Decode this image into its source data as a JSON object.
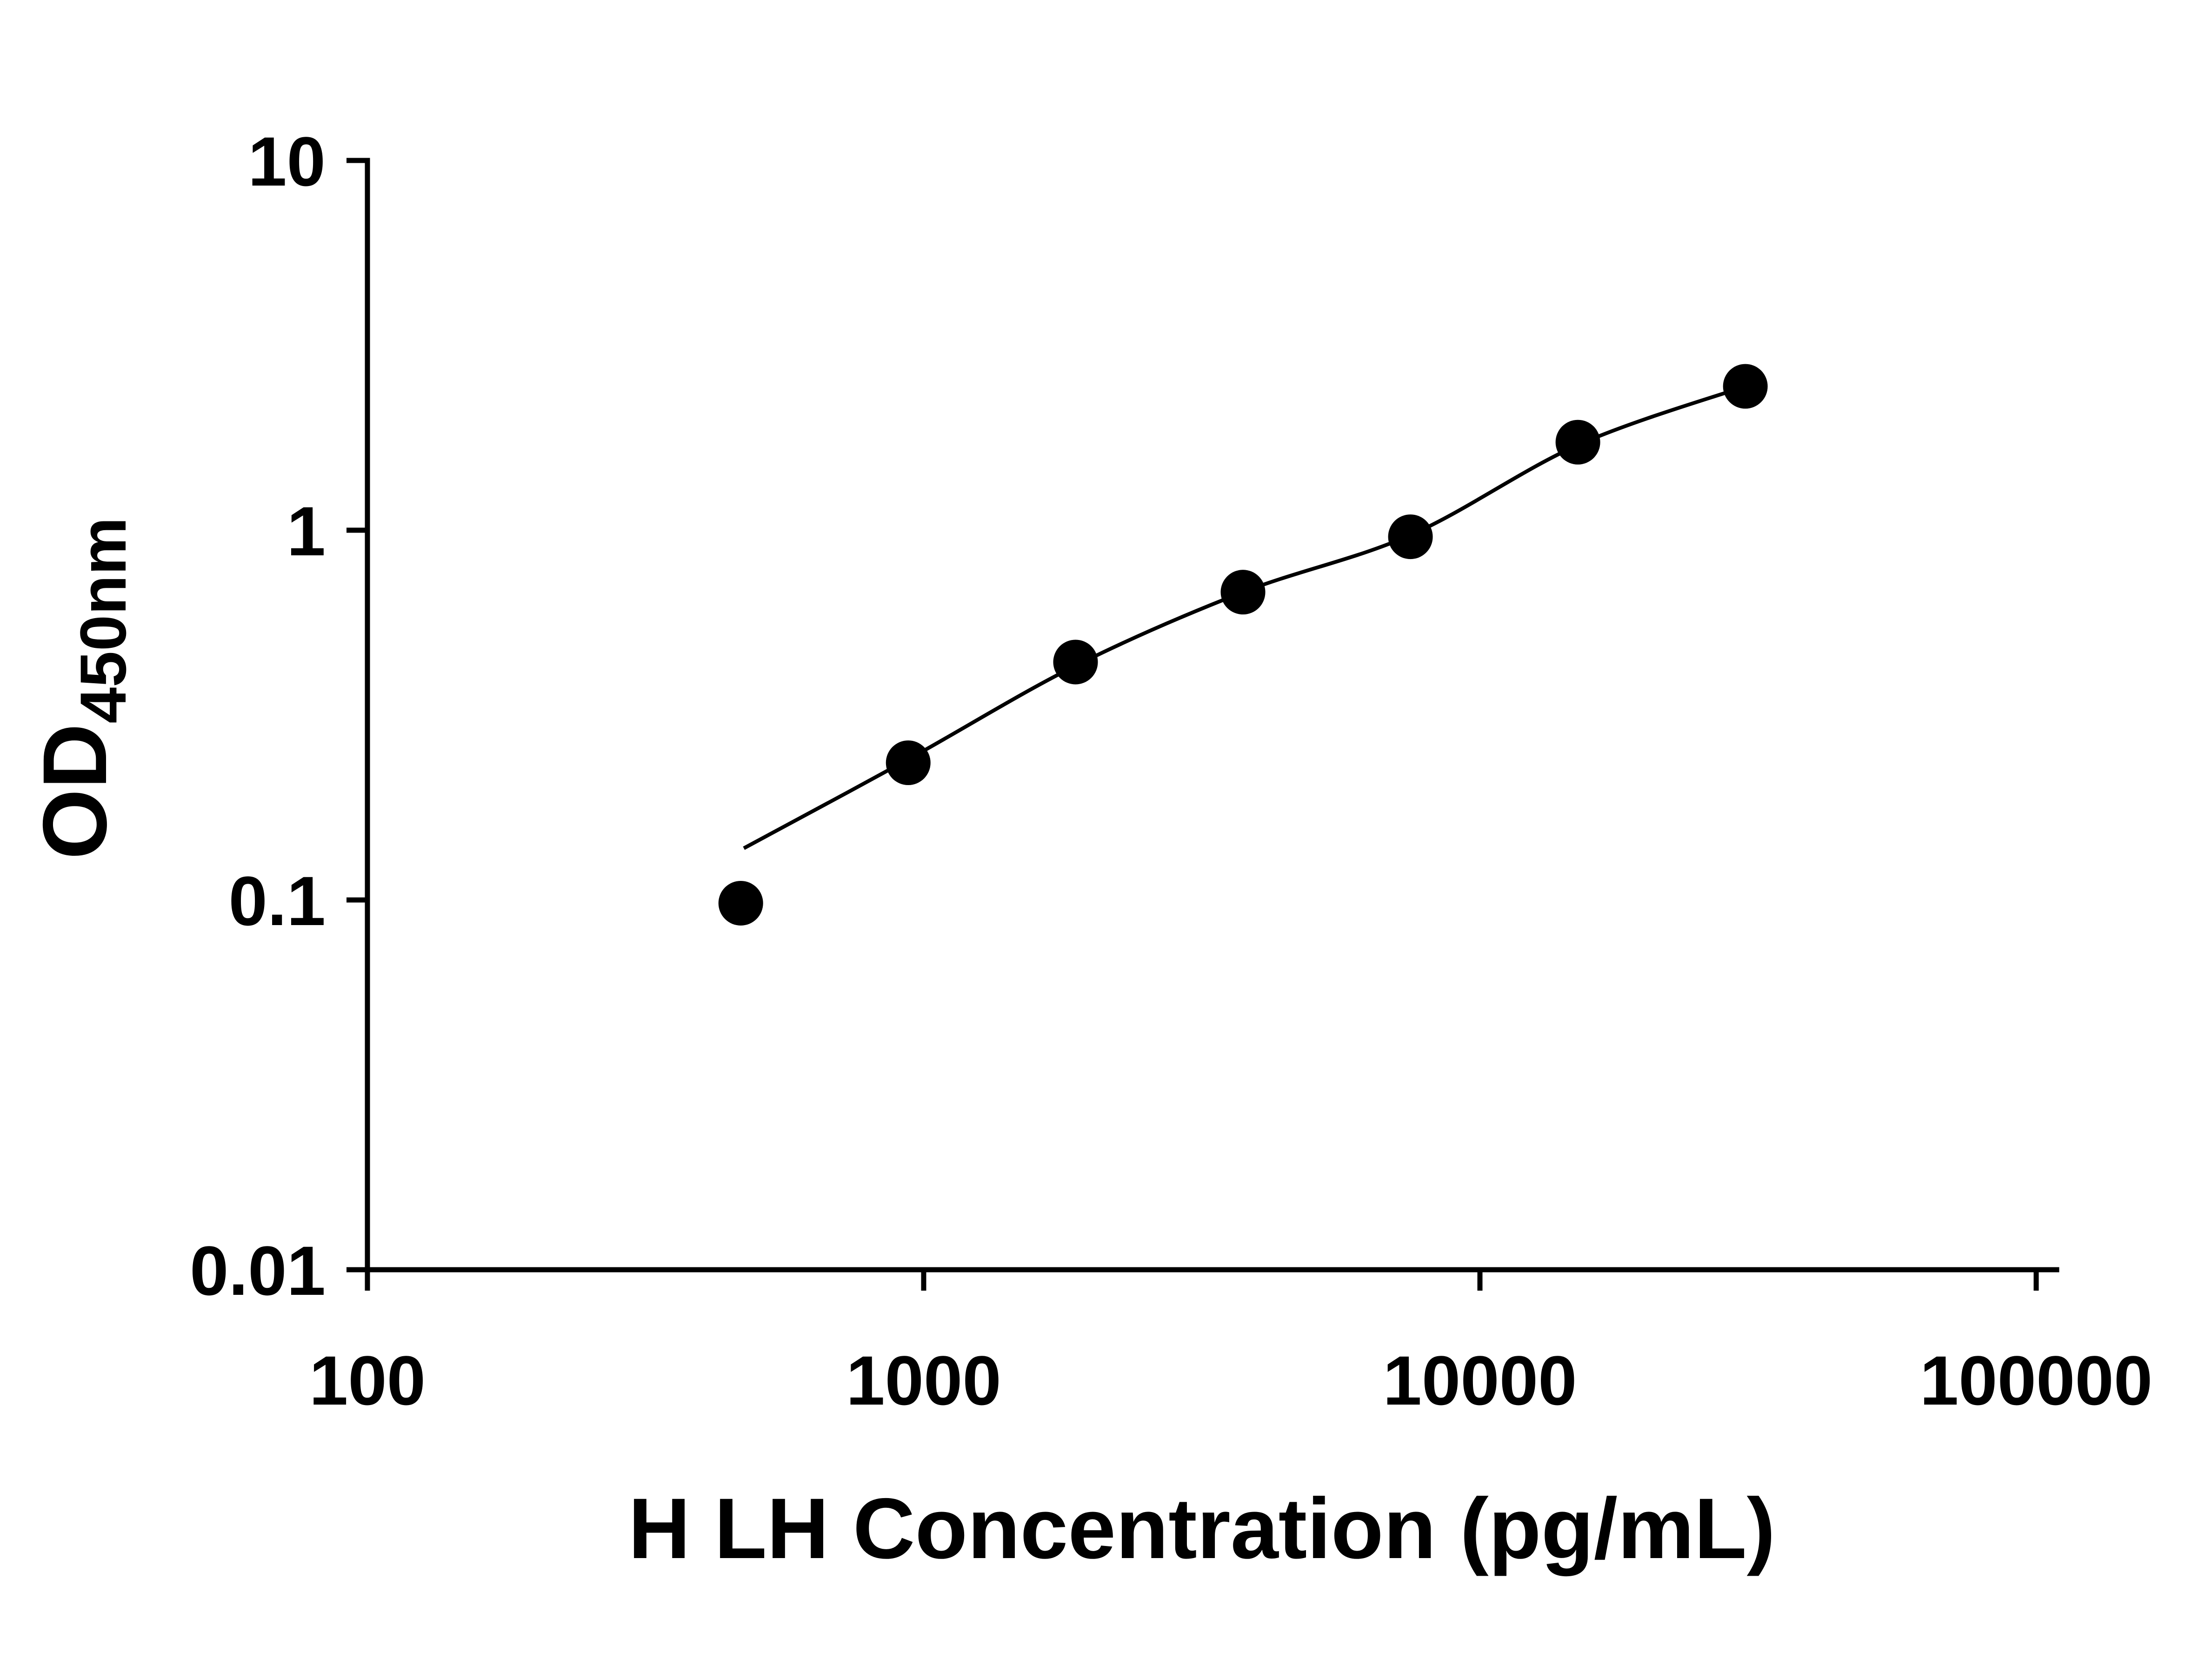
{
  "page": {
    "background": "#ffffff"
  },
  "chart_data": {
    "type": "scatter",
    "title": "",
    "xlabel": "H LH Concentration (pg/mL)",
    "ylabel": "OD",
    "ylabel_subscript": "450nm",
    "x_scale": "log10",
    "y_scale": "log10",
    "xlim": [
      100,
      100000
    ],
    "ylim": [
      0.01,
      10
    ],
    "x_ticks": [
      100,
      1000,
      10000,
      100000
    ],
    "x_tick_labels": [
      "100",
      "1000",
      "10000",
      "100000"
    ],
    "y_ticks": [
      0.01,
      0.1,
      1,
      10
    ],
    "y_tick_labels": [
      "0.01",
      "0.1",
      "1",
      "10"
    ],
    "grid": false,
    "legend": "none",
    "points": [
      {
        "x": 469,
        "y": 0.098
      },
      {
        "x": 938,
        "y": 0.235
      },
      {
        "x": 1875,
        "y": 0.44
      },
      {
        "x": 3750,
        "y": 0.68
      },
      {
        "x": 7500,
        "y": 0.96
      },
      {
        "x": 15000,
        "y": 1.73
      },
      {
        "x": 30000,
        "y": 2.45
      }
    ],
    "fit_curve": [
      {
        "x": 475,
        "y": 0.138
      },
      {
        "x": 938,
        "y": 0.24
      },
      {
        "x": 1875,
        "y": 0.43
      },
      {
        "x": 3750,
        "y": 0.68
      },
      {
        "x": 7500,
        "y": 0.97
      },
      {
        "x": 15000,
        "y": 1.7
      },
      {
        "x": 30000,
        "y": 2.45
      }
    ],
    "colors": {
      "marker": "#000000",
      "curve": "#000000",
      "axis": "#000000",
      "text": "#000000",
      "background": "#ffffff"
    }
  }
}
